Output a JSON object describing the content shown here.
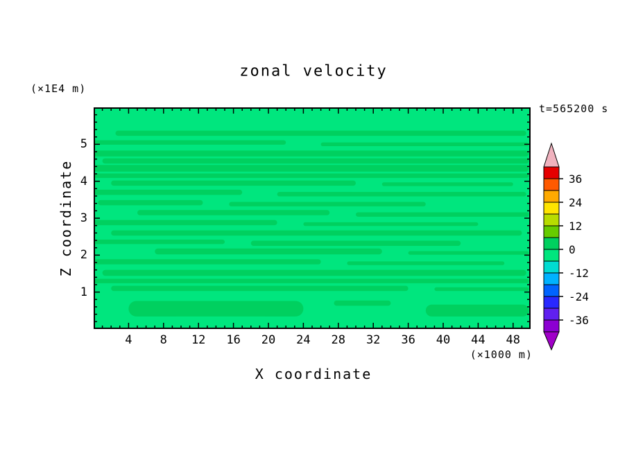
{
  "chart_data": {
    "type": "filled-contour",
    "title": "zonal velocity",
    "xlabel": "X coordinate",
    "ylabel": "Z coordinate",
    "x_unit": "(×1000 m)",
    "y_unit": "(×1E4 m)",
    "time": "t=565200 s",
    "x_range": [
      0,
      50
    ],
    "z_range": [
      0,
      6
    ],
    "x_ticks": [
      4,
      8,
      12,
      16,
      20,
      24,
      28,
      32,
      36,
      40,
      44,
      48
    ],
    "z_ticks": [
      1,
      2,
      3,
      4,
      5
    ],
    "x_minor_step": 1,
    "z_minor_step": 0.2,
    "grid": false,
    "legend_position": "right-colorbar",
    "field_summary": "Zonal velocity field is everywhere near zero: background lies in the -6..0 m/s band (mint green) with thin horizontal streaks in the 0..6 m/s band (green).",
    "base_band": {
      "range": [
        -6,
        0
      ],
      "color": "#00e67e"
    },
    "streak_band": {
      "range": [
        0,
        6
      ],
      "color": "#00d05f"
    },
    "streak_format": "[x_start, x_end, z_center, z_thickness] in axis units",
    "streaks": [
      [
        2.5,
        49.5,
        5.3,
        0.14
      ],
      [
        0.0,
        22.0,
        5.05,
        0.12
      ],
      [
        26.0,
        49.8,
        5.0,
        0.1
      ],
      [
        0.0,
        49.8,
        4.75,
        0.16
      ],
      [
        1.0,
        49.8,
        4.55,
        0.14
      ],
      [
        0.0,
        49.8,
        4.35,
        0.18
      ],
      [
        0.0,
        49.8,
        4.15,
        0.12
      ],
      [
        2.0,
        30.0,
        3.95,
        0.14
      ],
      [
        33.0,
        48.0,
        3.92,
        0.1
      ],
      [
        0.0,
        17.0,
        3.7,
        0.14
      ],
      [
        21.0,
        49.5,
        3.65,
        0.12
      ],
      [
        0.5,
        12.5,
        3.42,
        0.14
      ],
      [
        15.5,
        38.0,
        3.38,
        0.12
      ],
      [
        5.0,
        27.0,
        3.15,
        0.14
      ],
      [
        30.0,
        49.8,
        3.1,
        0.12
      ],
      [
        0.0,
        21.0,
        2.88,
        0.14
      ],
      [
        24.0,
        44.0,
        2.84,
        0.1
      ],
      [
        2.0,
        49.0,
        2.6,
        0.14
      ],
      [
        0.0,
        15.0,
        2.36,
        0.12
      ],
      [
        18.0,
        42.0,
        2.32,
        0.14
      ],
      [
        7.0,
        33.0,
        2.1,
        0.16
      ],
      [
        36.0,
        49.8,
        2.06,
        0.1
      ],
      [
        0.0,
        26.0,
        1.82,
        0.14
      ],
      [
        29.0,
        47.0,
        1.78,
        0.1
      ],
      [
        1.0,
        49.5,
        1.52,
        0.16
      ],
      [
        0.0,
        49.8,
        1.3,
        0.12
      ],
      [
        2.0,
        36.0,
        1.1,
        0.14
      ],
      [
        39.0,
        49.8,
        1.08,
        0.1
      ],
      [
        4.0,
        24.0,
        0.55,
        0.42
      ],
      [
        27.5,
        34.0,
        0.7,
        0.14
      ],
      [
        38.0,
        49.8,
        0.5,
        0.32
      ]
    ],
    "colorbar": {
      "min": -42,
      "max": 42,
      "step": 6,
      "labels": [
        36,
        24,
        12,
        0,
        -12,
        -24,
        -36
      ],
      "segments": [
        {
          "range": [
            -42,
            -36
          ],
          "color": "#8c00d2"
        },
        {
          "range": [
            -36,
            -30
          ],
          "color": "#6020f0"
        },
        {
          "range": [
            -30,
            -24
          ],
          "color": "#2828ff"
        },
        {
          "range": [
            -24,
            -18
          ],
          "color": "#0064ff"
        },
        {
          "range": [
            -18,
            -12
          ],
          "color": "#00b2ff"
        },
        {
          "range": [
            -12,
            -6
          ],
          "color": "#00dcd2"
        },
        {
          "range": [
            -6,
            0
          ],
          "color": "#00e67e"
        },
        {
          "range": [
            0,
            6
          ],
          "color": "#00d05f"
        },
        {
          "range": [
            6,
            12
          ],
          "color": "#66cc00"
        },
        {
          "range": [
            12,
            18
          ],
          "color": "#b8dc00"
        },
        {
          "range": [
            18,
            24
          ],
          "color": "#ffe400"
        },
        {
          "range": [
            24,
            30
          ],
          "color": "#ffaa00"
        },
        {
          "range": [
            30,
            36
          ],
          "color": "#ff5a00"
        },
        {
          "range": [
            36,
            42
          ],
          "color": "#e60000"
        }
      ],
      "under_arrow_color": "#a000c8",
      "over_arrow_color": "#f0b2be"
    }
  }
}
